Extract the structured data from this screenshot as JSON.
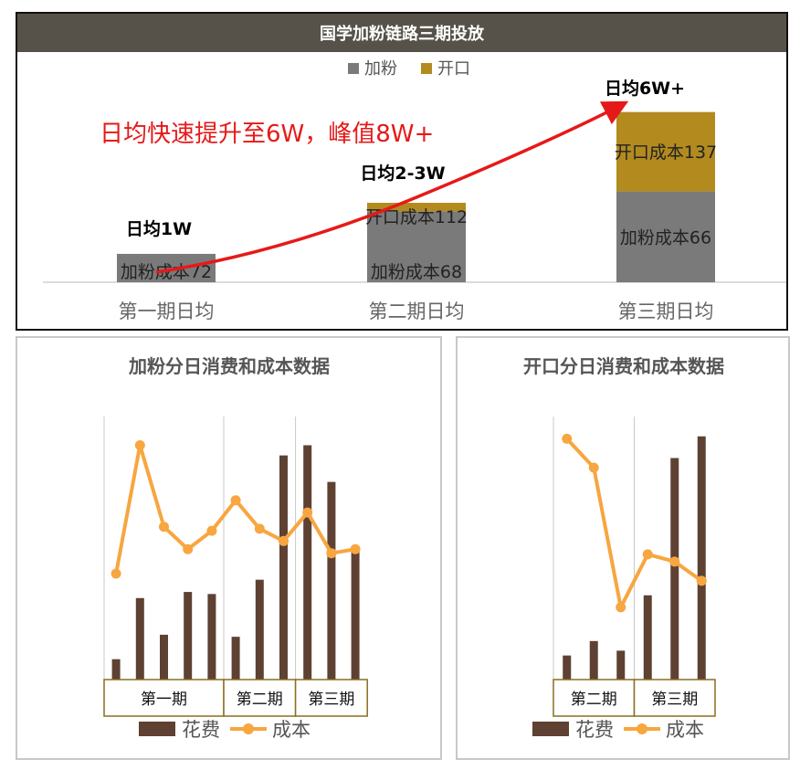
{
  "header": {
    "title": "国学加粉链路三期投放"
  },
  "top_chart": {
    "legend": [
      {
        "label": "加粉",
        "color": "#7a7a7a"
      },
      {
        "label": "开口",
        "color": "#b28a1e"
      }
    ],
    "categories": [
      "第一期日均",
      "第二期日均",
      "第三期日均"
    ],
    "headline": "日均快速提升至6W，峰值8W+",
    "annotations": [
      "日均1W",
      "日均2-3W",
      "日均6W+"
    ],
    "bar_labels": {
      "jiafen": [
        "加粉成本72",
        "加粉成本68",
        "加粉成本66"
      ],
      "kaikou": [
        "",
        "开口成本112",
        "开口成本137"
      ]
    }
  },
  "chart_data": [
    {
      "type": "bar",
      "title": "国学加粉链路三期投放",
      "categories": [
        "第一期日均",
        "第二期日均",
        "第三期日均"
      ],
      "series": [
        {
          "name": "加粉",
          "values": [
            1,
            2.5,
            3.2
          ],
          "color": "#7a7a7a"
        },
        {
          "name": "开口",
          "values": [
            0,
            0.3,
            2.8
          ],
          "color": "#b28a1e"
        }
      ],
      "annotations": [
        "日均1W",
        "日均2-3W",
        "日均6W+"
      ],
      "ylim": [
        0,
        6.6
      ]
    },
    {
      "type": "bar",
      "title": "加粉分日消费和成本数据",
      "groups": [
        {
          "label": "第一期",
          "count": 5
        },
        {
          "label": "第二期",
          "count": 3
        },
        {
          "label": "第三期",
          "count": 3
        }
      ],
      "series": [
        {
          "name": "花费",
          "type": "bar",
          "color": "#5e4132",
          "values": [
            10,
            40,
            22,
            43,
            42,
            21,
            49,
            110,
            115,
            97,
            63
          ]
        },
        {
          "name": "成本",
          "type": "line",
          "color": "#f7a640",
          "values": [
            52,
            115,
            75,
            64,
            73,
            88,
            74,
            68,
            82,
            62,
            64
          ]
        }
      ],
      "ylim": [
        0,
        130
      ]
    },
    {
      "type": "bar",
      "title": "开口分日消费和成本数据",
      "groups": [
        {
          "label": "第二期",
          "count": 3
        },
        {
          "label": "第三期",
          "count": 3
        }
      ],
      "series": [
        {
          "name": "花费",
          "type": "bar",
          "color": "#5e4132",
          "values": [
            10,
            16,
            12,
            35,
            92,
            101
          ]
        },
        {
          "name": "成本",
          "type": "line",
          "color": "#f7a640",
          "values": [
            100,
            88,
            30,
            52,
            49,
            41
          ]
        }
      ],
      "ylim": [
        0,
        110
      ]
    }
  ]
}
